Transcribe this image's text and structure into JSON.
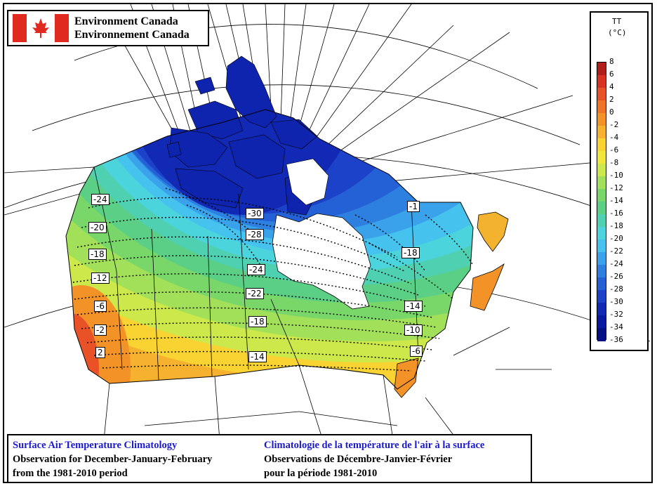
{
  "agency": {
    "name_en": "Environment Canada",
    "name_fr": "Environnement Canada"
  },
  "legend": {
    "variable": "TT",
    "unit": "(°C)",
    "ticks": [
      "8",
      "6",
      "4",
      "2",
      "0",
      "-2",
      "-4",
      "-6",
      "-8",
      "-10",
      "-12",
      "-14",
      "-16",
      "-18",
      "-20",
      "-22",
      "-24",
      "-26",
      "-28",
      "-30",
      "-32",
      "-34",
      "-36"
    ],
    "colors": [
      "#b01e1a",
      "#d83322",
      "#e95226",
      "#ef7426",
      "#f39227",
      "#f6b12e",
      "#f9d332",
      "#f0e73a",
      "#cce84a",
      "#a2e05a",
      "#79d668",
      "#5ccf86",
      "#4fd0b0",
      "#4cd4dc",
      "#46c2ee",
      "#3aa2ea",
      "#2d7fe0",
      "#2460d6",
      "#1b42c8",
      "#1229b6",
      "#0a1aa0",
      "#061086"
    ]
  },
  "isotherm_labels": [
    {
      "text": "-24"
    },
    {
      "text": "-20"
    },
    {
      "text": "-18"
    },
    {
      "text": "-12"
    },
    {
      "text": "-6"
    },
    {
      "text": "-2"
    },
    {
      "text": "2"
    },
    {
      "text": "-30"
    },
    {
      "text": "-28"
    },
    {
      "text": "-24"
    },
    {
      "text": "-22"
    },
    {
      "text": "-18"
    },
    {
      "text": "-14"
    },
    {
      "text": "-18"
    },
    {
      "text": "-14"
    },
    {
      "text": "-10"
    },
    {
      "text": "-6"
    },
    {
      "text": "-1"
    }
  ],
  "caption": {
    "title_en": "Surface Air Temperature Climatology",
    "line2_en": "Observation for December-January-February",
    "line3_en": "from the 1981-2010 period",
    "title_fr": "Climatologie de la température de l'air à la surface",
    "line2_fr": "Observations de Décembre-Janvier-Février",
    "line3_fr": "pour la période 1981-2010"
  }
}
